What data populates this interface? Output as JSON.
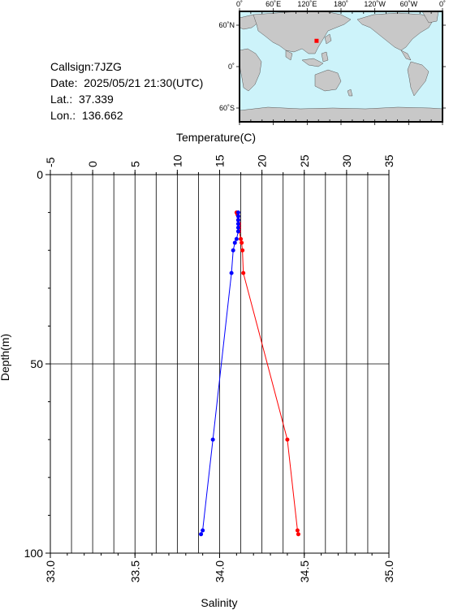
{
  "info": {
    "callsign": "Callsign:7JZG",
    "date": "Date:  2025/05/21 21:30(UTC)",
    "lat": "Lat.:  37.339",
    "lon": "Lon.:  136.662"
  },
  "map": {
    "lon_ticks": [
      "0˚",
      "60˚E",
      "120˚E",
      "180˚",
      "120˚W",
      "60˚W",
      "0˚"
    ],
    "lat_ticks": [
      "60˚N",
      "0˚",
      "60˚S"
    ],
    "station_lon": 136.662,
    "station_lat": 37.339,
    "colors": {
      "ocean": "#cdf3fa",
      "land": "#c8c8c8",
      "station": "#ff0000"
    }
  },
  "chart_data": {
    "type": "line",
    "title": "",
    "y_axis": {
      "label": "Depth(m)",
      "range": [
        0,
        100
      ],
      "ticks": [
        "0",
        "50",
        "100"
      ],
      "inverted": true
    },
    "top_axis": {
      "label": "Temperature(C)",
      "range": [
        -5,
        35
      ],
      "ticks": [
        "-5",
        "0",
        "5",
        "10",
        "15",
        "20",
        "25",
        "30",
        "35"
      ]
    },
    "bottom_axis": {
      "label": "Salinity",
      "range": [
        33.0,
        35.0
      ],
      "ticks": [
        "33.0",
        "33.5",
        "34.0",
        "34.5",
        "35.0"
      ]
    },
    "grid": true,
    "series": [
      {
        "name": "",
        "axis": "top",
        "color": "#ff0000",
        "points": [
          {
            "x": 17.0,
            "y": 10
          },
          {
            "x": 17.1,
            "y": 10.5
          },
          {
            "x": 17.2,
            "y": 11
          },
          {
            "x": 17.2,
            "y": 12
          },
          {
            "x": 17.3,
            "y": 13
          },
          {
            "x": 17.3,
            "y": 14
          },
          {
            "x": 17.3,
            "y": 15
          },
          {
            "x": 17.5,
            "y": 17
          },
          {
            "x": 17.6,
            "y": 18
          },
          {
            "x": 17.7,
            "y": 20
          },
          {
            "x": 17.8,
            "y": 26
          },
          {
            "x": 23.0,
            "y": 70
          },
          {
            "x": 24.2,
            "y": 94
          },
          {
            "x": 24.3,
            "y": 95
          }
        ]
      },
      {
        "name": "",
        "axis": "bottom",
        "color": "#0000ff",
        "points": [
          {
            "x": 34.11,
            "y": 10
          },
          {
            "x": 34.11,
            "y": 11
          },
          {
            "x": 34.11,
            "y": 12
          },
          {
            "x": 34.11,
            "y": 13
          },
          {
            "x": 34.11,
            "y": 14
          },
          {
            "x": 34.11,
            "y": 15
          },
          {
            "x": 34.1,
            "y": 17
          },
          {
            "x": 34.09,
            "y": 18
          },
          {
            "x": 34.08,
            "y": 20
          },
          {
            "x": 34.07,
            "y": 26
          },
          {
            "x": 33.96,
            "y": 70
          },
          {
            "x": 33.9,
            "y": 94
          },
          {
            "x": 33.89,
            "y": 95
          }
        ]
      }
    ]
  }
}
